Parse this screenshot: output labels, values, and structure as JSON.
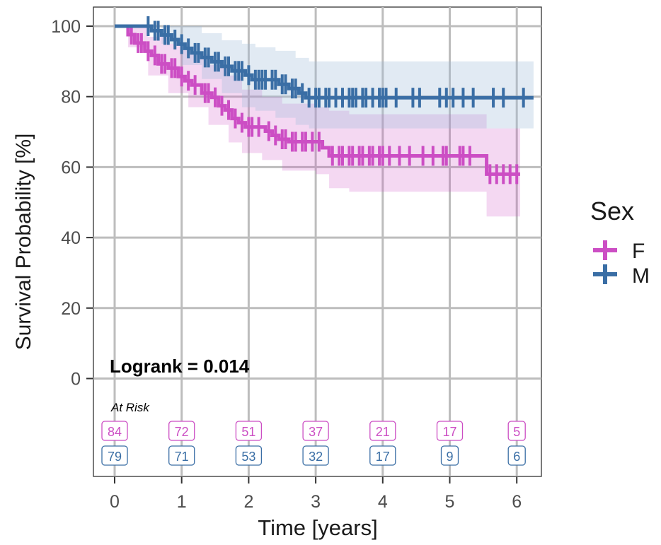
{
  "chart_data": {
    "type": "line",
    "subtype": "kaplan-meier",
    "ylabel": "Survival Probability [%]",
    "xlabel": "Time [years]",
    "ylim": [
      0,
      100
    ],
    "xlim": [
      0,
      6
    ],
    "y_ticks": [
      0,
      20,
      40,
      60,
      80,
      100
    ],
    "x_ticks": [
      0,
      1,
      2,
      3,
      4,
      5,
      6
    ],
    "grid": true,
    "legend": {
      "title": "Sex",
      "position": "right",
      "entries": [
        "F",
        "M"
      ]
    },
    "annotation": "Logrank = 0.014",
    "risk_table_label": "At Risk",
    "series": [
      {
        "name": "F",
        "color": "#cc4ec4",
        "band_color": "#cc4ec4",
        "steps": [
          [
            0,
            100
          ],
          [
            0.15,
            100
          ],
          [
            0.2,
            97.6
          ],
          [
            0.3,
            95.2
          ],
          [
            0.45,
            92.9
          ],
          [
            0.55,
            91.7
          ],
          [
            0.65,
            89.3
          ],
          [
            0.8,
            88.1
          ],
          [
            0.95,
            85.7
          ],
          [
            1.05,
            84.5
          ],
          [
            1.15,
            83.3
          ],
          [
            1.3,
            81.0
          ],
          [
            1.45,
            79.8
          ],
          [
            1.55,
            77.4
          ],
          [
            1.65,
            76.2
          ],
          [
            1.75,
            73.8
          ],
          [
            1.85,
            72.6
          ],
          [
            1.95,
            71.4
          ],
          [
            2.1,
            71.4
          ],
          [
            2.25,
            70.2
          ],
          [
            2.35,
            69.0
          ],
          [
            2.45,
            67.9
          ],
          [
            2.6,
            67.2
          ],
          [
            3.0,
            67.2
          ],
          [
            3.1,
            65.5
          ],
          [
            3.2,
            63.2
          ],
          [
            5.5,
            63.2
          ],
          [
            5.55,
            58.0
          ],
          [
            6.05,
            58.0
          ]
        ],
        "lower": [
          [
            0,
            100
          ],
          [
            0.2,
            94
          ],
          [
            0.5,
            86
          ],
          [
            0.8,
            81
          ],
          [
            1.1,
            77
          ],
          [
            1.4,
            72
          ],
          [
            1.7,
            67
          ],
          [
            1.9,
            64
          ],
          [
            2.2,
            62
          ],
          [
            2.5,
            59
          ],
          [
            3.0,
            58
          ],
          [
            3.2,
            54
          ],
          [
            3.5,
            53
          ],
          [
            5.5,
            53
          ],
          [
            5.55,
            46
          ],
          [
            6.05,
            46
          ]
        ],
        "upper": [
          [
            0,
            100
          ],
          [
            0.2,
            100
          ],
          [
            0.5,
            97
          ],
          [
            0.8,
            95
          ],
          [
            1.1,
            92
          ],
          [
            1.4,
            89
          ],
          [
            1.7,
            86
          ],
          [
            1.9,
            82
          ],
          [
            2.2,
            80
          ],
          [
            2.5,
            78
          ],
          [
            3.0,
            77
          ],
          [
            3.2,
            76
          ],
          [
            3.5,
            75
          ],
          [
            5.5,
            75
          ],
          [
            5.55,
            71
          ],
          [
            6.05,
            71
          ]
        ],
        "censor_x": [
          0.25,
          0.35,
          0.4,
          0.5,
          0.6,
          0.7,
          0.75,
          0.85,
          0.9,
          1.0,
          1.1,
          1.2,
          1.35,
          1.4,
          1.5,
          1.6,
          1.7,
          1.8,
          1.9,
          2.0,
          2.05,
          2.15,
          2.3,
          2.4,
          2.5,
          2.55,
          2.65,
          2.7,
          2.8,
          2.85,
          2.95,
          3.05,
          3.25,
          3.35,
          3.4,
          3.5,
          3.55,
          3.65,
          3.7,
          3.8,
          3.85,
          3.95,
          4.0,
          4.1,
          4.25,
          4.4,
          4.6,
          4.75,
          4.9,
          4.95,
          5.15,
          5.2,
          5.3,
          5.6,
          5.7,
          5.8,
          5.9,
          6.0
        ],
        "at_risk": [
          84,
          72,
          51,
          37,
          21,
          17,
          5
        ]
      },
      {
        "name": "M",
        "color": "#3a6ea5",
        "band_color": "#9bb9d6",
        "steps": [
          [
            0,
            100
          ],
          [
            0.45,
            100
          ],
          [
            0.55,
            98.7
          ],
          [
            0.7,
            97.5
          ],
          [
            0.85,
            96.2
          ],
          [
            0.95,
            94.9
          ],
          [
            1.05,
            93.7
          ],
          [
            1.15,
            92.4
          ],
          [
            1.3,
            91.1
          ],
          [
            1.45,
            89.9
          ],
          [
            1.6,
            88.6
          ],
          [
            1.75,
            87.3
          ],
          [
            1.95,
            86.1
          ],
          [
            2.05,
            84.8
          ],
          [
            2.3,
            84.8
          ],
          [
            2.45,
            83.5
          ],
          [
            2.6,
            82.3
          ],
          [
            2.75,
            81.0
          ],
          [
            2.85,
            79.7
          ],
          [
            6.25,
            79.7
          ]
        ],
        "lower": [
          [
            0,
            100
          ],
          [
            0.45,
            100
          ],
          [
            0.7,
            95
          ],
          [
            1.0,
            89
          ],
          [
            1.3,
            85
          ],
          [
            1.6,
            81
          ],
          [
            1.9,
            77
          ],
          [
            2.1,
            76
          ],
          [
            2.4,
            74
          ],
          [
            2.7,
            72
          ],
          [
            2.9,
            71
          ],
          [
            6.25,
            70
          ]
        ],
        "upper": [
          [
            0,
            100
          ],
          [
            0.45,
            100
          ],
          [
            0.7,
            100
          ],
          [
            1.0,
            100
          ],
          [
            1.3,
            98
          ],
          [
            1.6,
            96
          ],
          [
            1.9,
            95
          ],
          [
            2.1,
            94
          ],
          [
            2.4,
            93
          ],
          [
            2.7,
            91
          ],
          [
            2.9,
            90
          ],
          [
            6.25,
            90
          ]
        ],
        "censor_x": [
          0.5,
          0.6,
          0.65,
          0.75,
          0.8,
          0.9,
          1.0,
          1.1,
          1.2,
          1.25,
          1.35,
          1.4,
          1.5,
          1.55,
          1.65,
          1.7,
          1.8,
          1.85,
          1.9,
          2.0,
          2.1,
          2.15,
          2.2,
          2.25,
          2.35,
          2.4,
          2.5,
          2.55,
          2.65,
          2.7,
          2.8,
          2.9,
          3.0,
          3.05,
          3.15,
          3.2,
          3.3,
          3.4,
          3.5,
          3.55,
          3.6,
          3.7,
          3.75,
          3.85,
          3.95,
          4.0,
          4.05,
          4.2,
          4.45,
          4.55,
          4.85,
          4.95,
          5.05,
          5.2,
          5.35,
          5.65,
          5.8,
          6.1
        ],
        "at_risk": [
          79,
          71,
          53,
          32,
          17,
          9,
          6
        ]
      }
    ]
  }
}
